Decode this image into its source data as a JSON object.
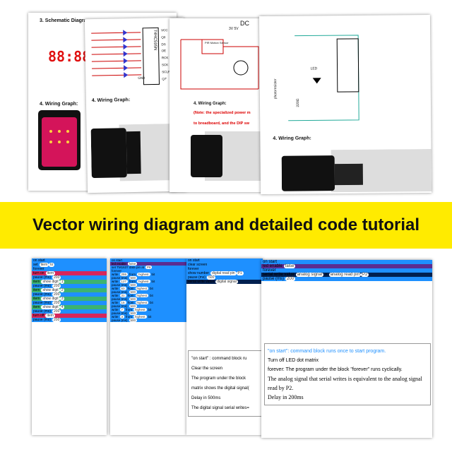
{
  "banner": "Vector wiring diagram and detailed code tutorial",
  "top_pages": [
    {
      "heading": "3. Schematic Diagra",
      "display": "88:88",
      "wiring": "4. Wiring Graph:"
    },
    {
      "chip": "74HC595N",
      "pins_right": [
        "VCC",
        "Q0",
        "DS",
        "OE",
        "RCK",
        "SCK",
        "SCLR",
        "Q7'"
      ],
      "pins_left": [
        "GND"
      ],
      "wiring": "4. Wiring Graph:"
    },
    {
      "source": "DC",
      "voltages": "3V  5V",
      "sensor": "PIR Motion Sensor",
      "wiring": "4. Wiring Graph:",
      "note": [
        "(Note: the specialized power m",
        "to breadboard, and the DIP sw"
      ]
    },
    {
      "led": "LED",
      "resistor": "220Ω",
      "sensor": "photoresistor",
      "wiring": "4. Wiring Graph:"
    }
  ],
  "bottom_pages": [
    {
      "rows": [
        [
          "on start"
        ],
        [
          "set",
          "item",
          "to"
        ],
        [
          "forever"
        ],
        [
          "turn on",
          "item"
        ],
        [
          "pause (ms)",
          "200"
        ],
        [
          "item",
          "show digit",
          "1"
        ],
        [
          "pause (ms)",
          "200"
        ],
        [
          "item",
          "show digit",
          "2"
        ],
        [
          "pause (ms)",
          "200"
        ],
        [
          "item",
          "show digit",
          "3"
        ],
        [
          "pause (ms)",
          "200"
        ],
        [
          "item",
          "show digit",
          "4"
        ],
        [
          "pause (ms)",
          "200"
        ],
        [
          "turn off",
          "item"
        ],
        [
          "pause (ms)",
          "200"
        ]
      ]
    },
    {
      "rows": [
        [
          "on start"
        ],
        [
          "led enable",
          "false"
        ],
        [
          "set TM1637 data pin at",
          "P8"
        ],
        [
          "forever"
        ],
        [
          "write",
          "255",
          "from",
          "highest",
          "bit"
        ],
        [
          "pause (ms)",
          "500"
        ],
        [
          "write",
          "127",
          "from",
          "highest",
          "bit"
        ],
        [
          "pause (ms)",
          "500"
        ],
        [
          "write",
          "63",
          "from",
          "highest",
          "bit"
        ],
        [
          "pause (ms)",
          "500"
        ],
        [
          "write",
          "31",
          "from",
          "highest",
          "bit"
        ],
        [
          "pause (ms)",
          "500"
        ],
        [
          "write",
          "15",
          "from",
          "highest",
          "bit"
        ],
        [
          "pause (ms)",
          "500"
        ],
        [
          "write",
          "7",
          "from",
          "highest",
          "bit"
        ],
        [
          "pause (ms)",
          "500"
        ],
        [
          "write",
          "3",
          "from",
          "highest",
          "bit"
        ],
        [
          "pause (ms)",
          "500"
        ]
      ]
    },
    {
      "rows": [
        [
          "on start"
        ],
        [
          "clear screen"
        ],
        [
          "forever"
        ],
        [
          "show number",
          "digital read pin",
          "P1"
        ],
        [
          "pause (ms)",
          "500"
        ],
        [
          "serial write value",
          "digital signal"
        ]
      ],
      "notes": [
        "\"on start\" : command block ru",
        "Clear the screen",
        "The program under the block",
        "matrix shows the digital signal(",
        "Delay in 500ms",
        "The digital signal serial writes="
      ]
    },
    {
      "rows": [
        [
          "on start"
        ],
        [
          "led enable",
          "false"
        ],
        [
          "forever"
        ],
        [
          "serial write value",
          "analog signal",
          "=",
          "analog read pin",
          "P2"
        ],
        [
          "pause (ms)",
          "200"
        ]
      ],
      "notes": [
        "\"on start\": command block runs once to start program.",
        "Turn off LED dot matrix",
        "forever: The program under the block \"forever\" runs cyclically.",
        "The analog signal that serial writes is equivalent to the analog signal read by P2.",
        "Delay in 200ms"
      ]
    }
  ]
}
